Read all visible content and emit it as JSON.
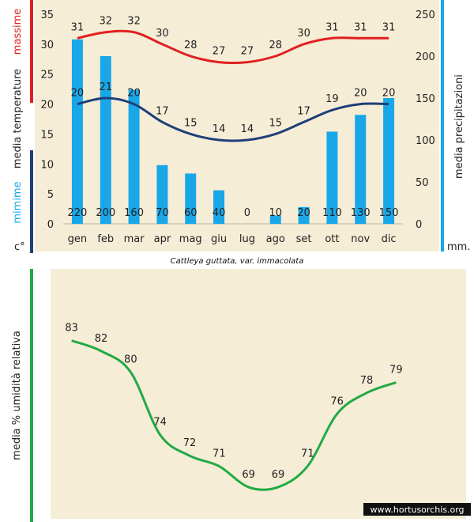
{
  "colors": {
    "max_line": "#e02020",
    "min_line": "#1f3f78",
    "bars": "#19a7e8",
    "humidity_line": "#22aa44",
    "max_label": "#e02020",
    "min_label": "#19a7e8",
    "precip_bar_accent": "#19a7e8",
    "left_bar_bottom": "#1f3f78",
    "right_bar": "#19a7e8",
    "humidity_bar": "#22aa44"
  },
  "labels": {
    "massime": "massime",
    "media_temperature": "media  temperature",
    "mimime": "mimime",
    "degree_unit": "c°",
    "precip_axis": "media  precipitazioni",
    "mm_unit": "mm.",
    "caption": "Cattleya guttata, var. immacolata",
    "humidity_axis": "media %  umidità relativa",
    "watermark": "www.hortusorchis.org"
  },
  "chart_data": [
    {
      "type": "bar",
      "categories": [
        "gen",
        "feb",
        "mar",
        "apr",
        "mag",
        "giu",
        "lug",
        "ago",
        "set",
        "ott",
        "nov",
        "dic"
      ],
      "y_left": {
        "ylim": [
          0,
          35
        ],
        "ticks": [
          0,
          5,
          10,
          15,
          20,
          25,
          30,
          35
        ]
      },
      "y_right": {
        "ylim": [
          0,
          250
        ],
        "ticks": [
          0,
          50,
          100,
          150,
          200,
          250
        ]
      },
      "series": [
        {
          "name": "massime",
          "type": "line",
          "axis": "left",
          "values": [
            31,
            32,
            32,
            30,
            28,
            27,
            27,
            28,
            30,
            31,
            31,
            31
          ]
        },
        {
          "name": "mimime",
          "type": "line",
          "axis": "left",
          "values": [
            20,
            21,
            20,
            17,
            15,
            14,
            14,
            15,
            17,
            19,
            20,
            20
          ]
        },
        {
          "name": "media  precipitazioni",
          "type": "bar",
          "axis": "right",
          "values": [
            220,
            200,
            160,
            70,
            60,
            40,
            0,
            10,
            20,
            110,
            130,
            150
          ]
        }
      ]
    },
    {
      "type": "line",
      "categories": [
        "gen",
        "feb",
        "mar",
        "apr",
        "mag",
        "giu",
        "lug",
        "ago",
        "set",
        "ott",
        "nov",
        "dic"
      ],
      "ylim": [
        60,
        90
      ],
      "series": [
        {
          "name": "media %  umidità relativa",
          "values": [
            83,
            82,
            80,
            74,
            72,
            71,
            69,
            69,
            71,
            76,
            78,
            79
          ]
        }
      ]
    }
  ]
}
